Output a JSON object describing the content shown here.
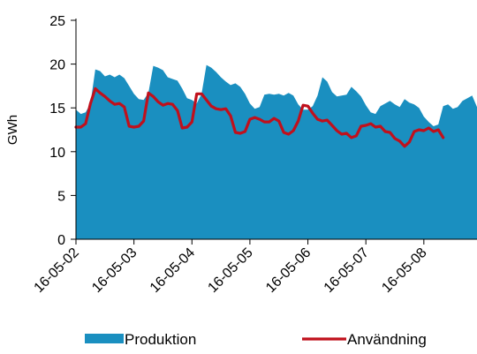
{
  "chart_data": {
    "type": "area",
    "ylabel": "GWh",
    "ylim": [
      0,
      25
    ],
    "yticks": [
      0,
      5,
      10,
      15,
      20,
      25
    ],
    "x_ticklabels": [
      "16-05-02",
      "16-05-03",
      "16-05-04",
      "16-05-05",
      "16-05-06",
      "16-05-07",
      "16-05-08"
    ],
    "x_units": "hours since 16-05-02 00:00",
    "series": [
      {
        "name": "Produktion",
        "style": "area",
        "color": "#1a8fc0",
        "points": [
          [
            0,
            14.8
          ],
          [
            2,
            14.3
          ],
          [
            4,
            14.5
          ],
          [
            6,
            15.5
          ],
          [
            8,
            19.4
          ],
          [
            10,
            19.2
          ],
          [
            12,
            18.6
          ],
          [
            14,
            18.8
          ],
          [
            16,
            18.5
          ],
          [
            18,
            18.8
          ],
          [
            20,
            18.4
          ],
          [
            22,
            17.5
          ],
          [
            24,
            16.6
          ],
          [
            26,
            16.0
          ],
          [
            28,
            15.9
          ],
          [
            30,
            16.7
          ],
          [
            32,
            19.8
          ],
          [
            34,
            19.6
          ],
          [
            36,
            19.3
          ],
          [
            38,
            18.5
          ],
          [
            40,
            18.3
          ],
          [
            42,
            18.1
          ],
          [
            44,
            17.2
          ],
          [
            46,
            16.1
          ],
          [
            48,
            15.9
          ],
          [
            50,
            15.5
          ],
          [
            52,
            16.6
          ],
          [
            54,
            19.9
          ],
          [
            56,
            19.6
          ],
          [
            58,
            19.1
          ],
          [
            60,
            18.5
          ],
          [
            62,
            18.0
          ],
          [
            64,
            17.6
          ],
          [
            66,
            17.8
          ],
          [
            68,
            17.4
          ],
          [
            70,
            16.6
          ],
          [
            72,
            15.5
          ],
          [
            74,
            14.9
          ],
          [
            76,
            15.1
          ],
          [
            78,
            16.5
          ],
          [
            80,
            16.6
          ],
          [
            82,
            16.5
          ],
          [
            84,
            16.6
          ],
          [
            86,
            16.4
          ],
          [
            88,
            16.7
          ],
          [
            90,
            16.4
          ],
          [
            92,
            15.4
          ],
          [
            94,
            14.8
          ],
          [
            96,
            14.8
          ],
          [
            98,
            15.2
          ],
          [
            100,
            16.4
          ],
          [
            102,
            18.5
          ],
          [
            104,
            18.0
          ],
          [
            106,
            16.8
          ],
          [
            108,
            16.3
          ],
          [
            110,
            16.4
          ],
          [
            112,
            16.5
          ],
          [
            114,
            17.4
          ],
          [
            116,
            16.9
          ],
          [
            118,
            16.3
          ],
          [
            120,
            15.3
          ],
          [
            122,
            14.5
          ],
          [
            124,
            14.3
          ],
          [
            126,
            15.2
          ],
          [
            128,
            15.5
          ],
          [
            130,
            15.8
          ],
          [
            132,
            15.4
          ],
          [
            134,
            15.1
          ],
          [
            136,
            16.0
          ],
          [
            138,
            15.6
          ],
          [
            140,
            15.4
          ],
          [
            142,
            15.0
          ],
          [
            144,
            14.0
          ],
          [
            146,
            13.4
          ],
          [
            148,
            12.9
          ],
          [
            150,
            13.1
          ],
          [
            152,
            15.2
          ],
          [
            154,
            15.4
          ],
          [
            156,
            14.9
          ],
          [
            158,
            15.1
          ],
          [
            160,
            15.8
          ],
          [
            162,
            16.1
          ],
          [
            164,
            16.4
          ],
          [
            166,
            15.1
          ]
        ]
      },
      {
        "name": "Användning",
        "style": "line",
        "color": "#c0101c",
        "points": [
          [
            0,
            12.8
          ],
          [
            2,
            12.8
          ],
          [
            4,
            13.2
          ],
          [
            6,
            15.5
          ],
          [
            8,
            17.2
          ],
          [
            10,
            16.7
          ],
          [
            12,
            16.3
          ],
          [
            14,
            15.8
          ],
          [
            16,
            15.4
          ],
          [
            18,
            15.5
          ],
          [
            20,
            15.1
          ],
          [
            22,
            12.9
          ],
          [
            24,
            12.8
          ],
          [
            26,
            12.9
          ],
          [
            28,
            13.5
          ],
          [
            30,
            16.7
          ],
          [
            32,
            16.3
          ],
          [
            34,
            15.7
          ],
          [
            36,
            15.3
          ],
          [
            38,
            15.5
          ],
          [
            40,
            15.4
          ],
          [
            42,
            14.7
          ],
          [
            44,
            12.7
          ],
          [
            46,
            12.8
          ],
          [
            48,
            13.4
          ],
          [
            50,
            16.6
          ],
          [
            52,
            16.6
          ],
          [
            54,
            15.9
          ],
          [
            56,
            15.2
          ],
          [
            58,
            14.9
          ],
          [
            60,
            14.8
          ],
          [
            62,
            14.9
          ],
          [
            64,
            14.1
          ],
          [
            66,
            12.2
          ],
          [
            68,
            12.1
          ],
          [
            70,
            12.3
          ],
          [
            72,
            13.7
          ],
          [
            74,
            13.9
          ],
          [
            76,
            13.7
          ],
          [
            78,
            13.4
          ],
          [
            80,
            13.4
          ],
          [
            82,
            13.8
          ],
          [
            84,
            13.5
          ],
          [
            86,
            12.2
          ],
          [
            88,
            12.0
          ],
          [
            90,
            12.4
          ],
          [
            92,
            13.5
          ],
          [
            94,
            15.3
          ],
          [
            96,
            15.2
          ],
          [
            98,
            14.4
          ],
          [
            100,
            13.7
          ],
          [
            102,
            13.5
          ],
          [
            104,
            13.6
          ],
          [
            106,
            13.0
          ],
          [
            108,
            12.4
          ],
          [
            110,
            12.0
          ],
          [
            112,
            12.1
          ],
          [
            114,
            11.6
          ],
          [
            116,
            11.8
          ],
          [
            118,
            12.9
          ],
          [
            120,
            13.0
          ],
          [
            122,
            13.2
          ],
          [
            124,
            12.8
          ],
          [
            126,
            12.9
          ],
          [
            128,
            12.3
          ],
          [
            130,
            12.2
          ],
          [
            132,
            11.5
          ],
          [
            134,
            11.2
          ],
          [
            136,
            10.6
          ],
          [
            138,
            11.1
          ],
          [
            140,
            12.3
          ],
          [
            142,
            12.5
          ],
          [
            144,
            12.4
          ],
          [
            146,
            12.7
          ],
          [
            148,
            12.3
          ],
          [
            150,
            12.5
          ],
          [
            152,
            11.6
          ]
        ]
      }
    ],
    "legend": {
      "position": "bottom",
      "items": [
        {
          "label": "Produktion",
          "marker": "area",
          "color": "#1a8fc0"
        },
        {
          "label": "Användning",
          "marker": "line",
          "color": "#c0101c"
        }
      ]
    },
    "grid": false
  }
}
